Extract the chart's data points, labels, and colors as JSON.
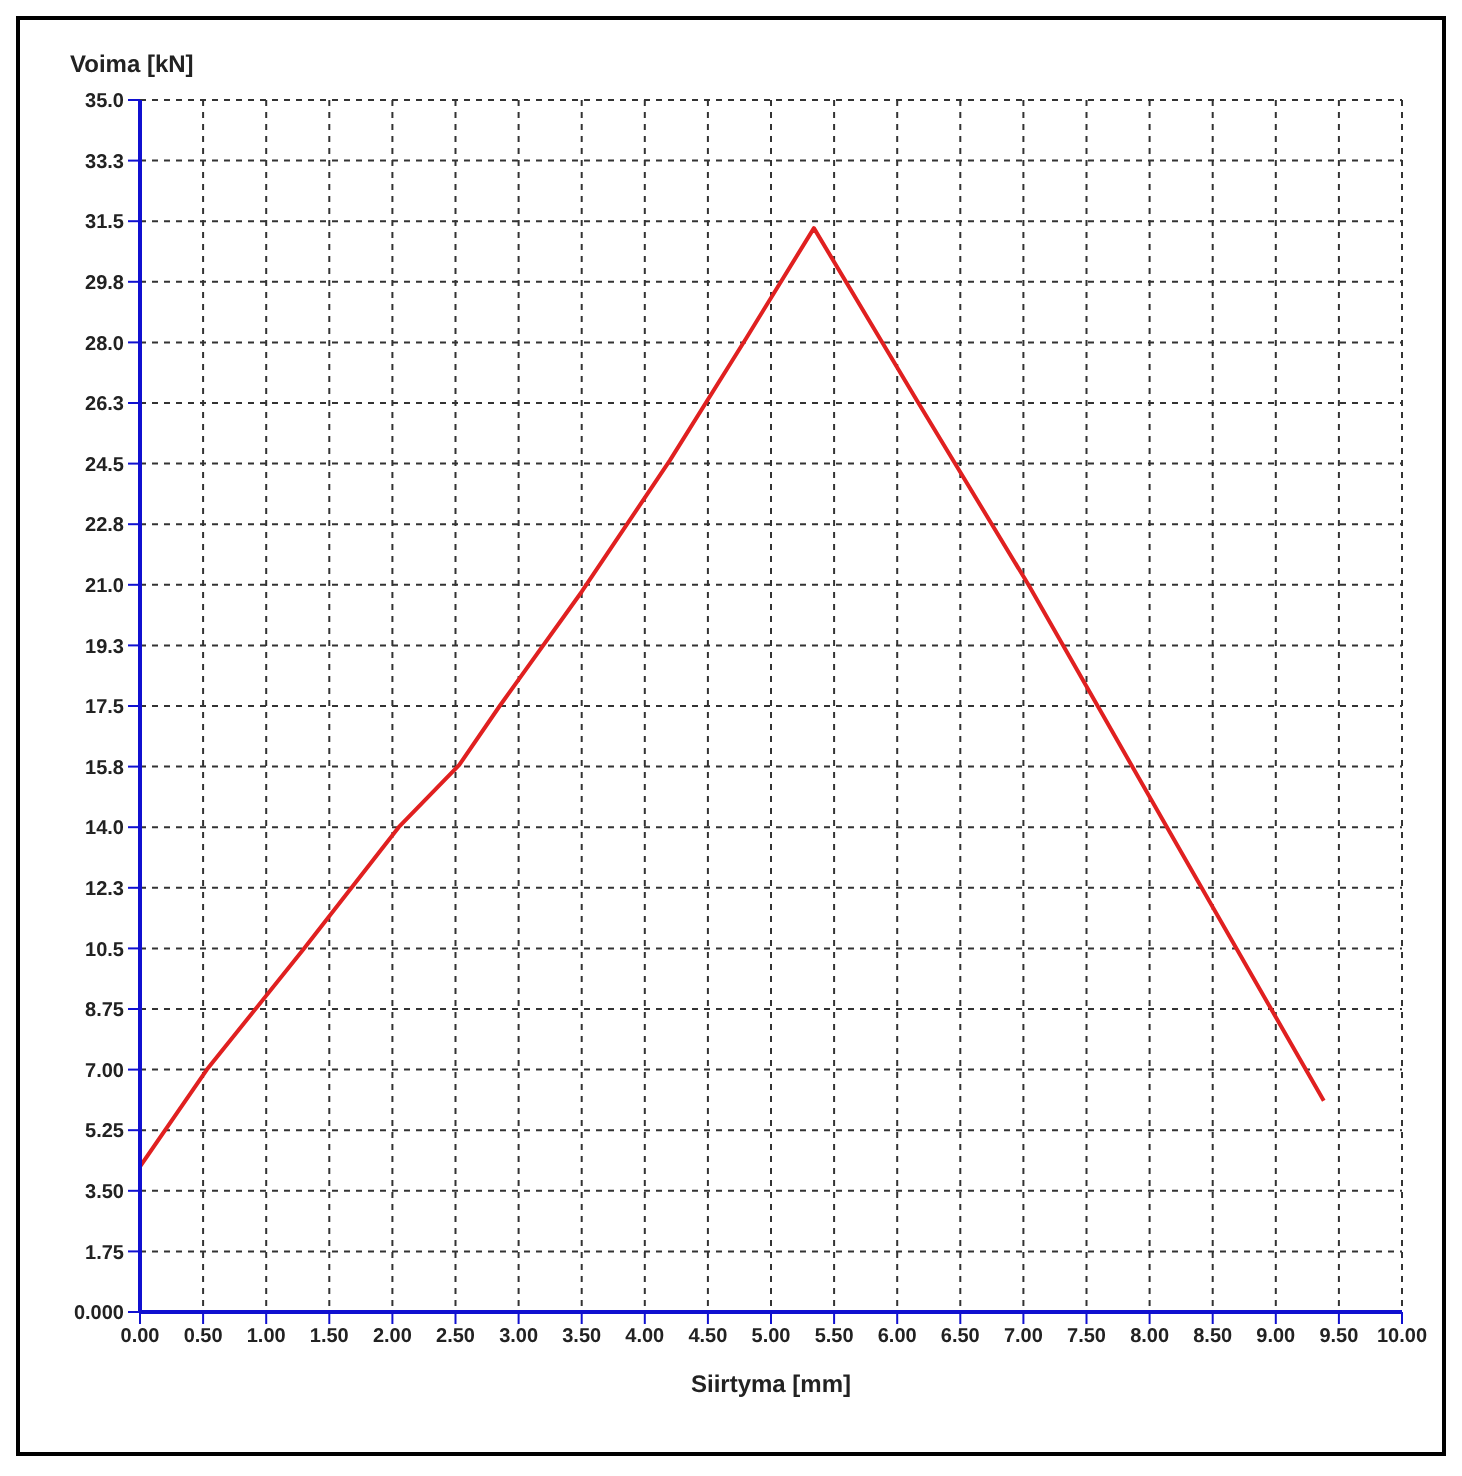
{
  "chart_data": {
    "type": "line",
    "xlabel": "Siirtyma  [mm]",
    "ylabel": "Voima  [kN]",
    "xlim": [
      0,
      10
    ],
    "xticks": [
      {
        "value": 0,
        "label": "0.00"
      },
      {
        "value": 0.5,
        "label": "0.50"
      },
      {
        "value": 1,
        "label": "1.00"
      },
      {
        "value": 1.5,
        "label": "1.50"
      },
      {
        "value": 2,
        "label": "2.00"
      },
      {
        "value": 2.5,
        "label": "2.50"
      },
      {
        "value": 3,
        "label": "3.00"
      },
      {
        "value": 3.5,
        "label": "3.50"
      },
      {
        "value": 4,
        "label": "4.00"
      },
      {
        "value": 4.5,
        "label": "4.50"
      },
      {
        "value": 5,
        "label": "5.00"
      },
      {
        "value": 5.5,
        "label": "5.50"
      },
      {
        "value": 6,
        "label": "6.00"
      },
      {
        "value": 6.5,
        "label": "6.50"
      },
      {
        "value": 7,
        "label": "7.00"
      },
      {
        "value": 7.5,
        "label": "7.50"
      },
      {
        "value": 8,
        "label": "8.00"
      },
      {
        "value": 8.5,
        "label": "8.50"
      },
      {
        "value": 9,
        "label": "9.00"
      },
      {
        "value": 9.5,
        "label": "9.50"
      },
      {
        "value": 10,
        "label": "10.00"
      }
    ],
    "ylim": [
      0,
      35
    ],
    "yticks": [
      {
        "value": 0,
        "label": "0.000"
      },
      1.75,
      {
        "value": 3.5,
        "label": "3.50"
      },
      5.25,
      {
        "value": 7,
        "label": "7.00"
      },
      8.75,
      10.5,
      {
        "value": 12.25,
        "label": "12.3"
      },
      {
        "value": 14,
        "label": "14.0"
      },
      {
        "value": 15.75,
        "label": "15.8"
      },
      17.5,
      {
        "value": 19.25,
        "label": "19.3"
      },
      {
        "value": 21,
        "label": "21.0"
      },
      {
        "value": 22.75,
        "label": "22.8"
      },
      24.5,
      {
        "value": 26.25,
        "label": "26.3"
      },
      {
        "value": 28,
        "label": "28.0"
      },
      {
        "value": 29.75,
        "label": "29.8"
      },
      31.5,
      {
        "value": 33.25,
        "label": "33.3"
      },
      {
        "value": 35,
        "label": "35.0"
      }
    ],
    "grid": true,
    "marker": "none",
    "line_style": "solid",
    "series": [
      {
        "color": "#e02020",
        "x": [
          0,
          0,
          0.53,
          1.3,
          2.05,
          2.53,
          2.85,
          3.5,
          4.2,
          4.8,
          5.34,
          6.16,
          7.04,
          8.2,
          9.38
        ],
        "values": [
          0,
          4.2,
          7,
          10.5,
          14,
          15.8,
          17.5,
          20.8,
          24.6,
          28.1,
          31.3,
          26.3,
          21,
          13.6,
          6.1
        ]
      }
    ]
  }
}
